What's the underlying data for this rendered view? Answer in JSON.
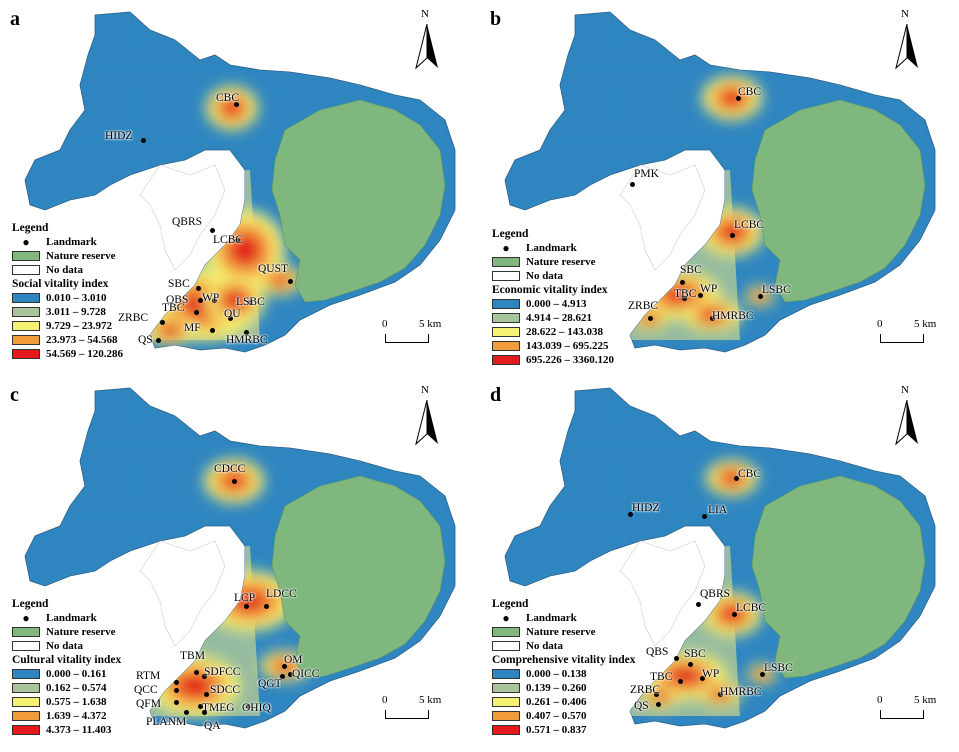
{
  "panels": [
    {
      "id": "a",
      "label": "a",
      "index_title": "Social vitality index",
      "classes": [
        "0.010 – 3.010",
        "3.011 – 9.728",
        "9.729 – 23.972",
        "23.973 – 54.568",
        "54.569 – 120.286"
      ],
      "landmarks": [
        {
          "name": "CBC"
        },
        {
          "name": "HIDZ"
        },
        {
          "name": "QBRS"
        },
        {
          "name": "LCBC"
        },
        {
          "name": "QUST"
        },
        {
          "name": "SBC"
        },
        {
          "name": "QBS"
        },
        {
          "name": "WP"
        },
        {
          "name": "LSBC"
        },
        {
          "name": "ZRBC"
        },
        {
          "name": "TBC"
        },
        {
          "name": "OU"
        },
        {
          "name": "MF"
        },
        {
          "name": "QS"
        },
        {
          "name": "HMRBC"
        }
      ]
    },
    {
      "id": "b",
      "label": "b",
      "index_title": "Economic vitality index",
      "classes": [
        "0.000 – 4.913",
        "4.914 – 28.621",
        "28.622 – 143.038",
        "143.039 – 695.225",
        "695.226 – 3360.120"
      ],
      "landmarks": [
        {
          "name": "CBC"
        },
        {
          "name": "PMK"
        },
        {
          "name": "LCBC"
        },
        {
          "name": "SBC"
        },
        {
          "name": "TBC"
        },
        {
          "name": "WP"
        },
        {
          "name": "ZRBC"
        },
        {
          "name": "LSBC"
        },
        {
          "name": "HMRBC"
        }
      ]
    },
    {
      "id": "c",
      "label": "c",
      "index_title": "Cultural vitality index",
      "classes": [
        "0.000 – 0.161",
        "0.162 – 0.574",
        "0.575 – 1.638",
        "1.639 – 4.372",
        "4.373 – 11.403"
      ],
      "landmarks": [
        {
          "name": "CDCC"
        },
        {
          "name": "LCP"
        },
        {
          "name": "LDCC"
        },
        {
          "name": "TBM"
        },
        {
          "name": "SDFCC"
        },
        {
          "name": "OM"
        },
        {
          "name": "QGT"
        },
        {
          "name": "QICC"
        },
        {
          "name": "RTM"
        },
        {
          "name": "QCC"
        },
        {
          "name": "SDCC"
        },
        {
          "name": "QFM"
        },
        {
          "name": "TMEG"
        },
        {
          "name": "OHIQ"
        },
        {
          "name": "PLANM"
        },
        {
          "name": "QA"
        }
      ]
    },
    {
      "id": "d",
      "label": "d",
      "index_title": "Comprehensive vitality index",
      "classes": [
        "0.000 – 0.138",
        "0.139 – 0.260",
        "0.261 – 0.406",
        "0.407 – 0.570",
        "0.571 – 0.837"
      ],
      "landmarks": [
        {
          "name": "CBC"
        },
        {
          "name": "HIDZ"
        },
        {
          "name": "LIA"
        },
        {
          "name": "QBRS"
        },
        {
          "name": "LCBC"
        },
        {
          "name": "QBS"
        },
        {
          "name": "SBC"
        },
        {
          "name": "LSBC"
        },
        {
          "name": "TBC"
        },
        {
          "name": "WP"
        },
        {
          "name": "ZRBC"
        },
        {
          "name": "QS"
        },
        {
          "name": "HMRBC"
        }
      ]
    }
  ],
  "legend": {
    "title": "Legend",
    "landmark": "Landmark",
    "nature_reserve": "Nature reserve",
    "no_data": "No data"
  },
  "north_label": "N",
  "scale": {
    "zero": "0",
    "five": "5 km"
  },
  "colors": {
    "class1": "#2e86c1",
    "class2": "#a8c49a",
    "class3": "#f5f271",
    "class4": "#f39c3c",
    "class5": "#e31a1c",
    "nature": "#7fb77e",
    "nodata": "#ffffff"
  }
}
